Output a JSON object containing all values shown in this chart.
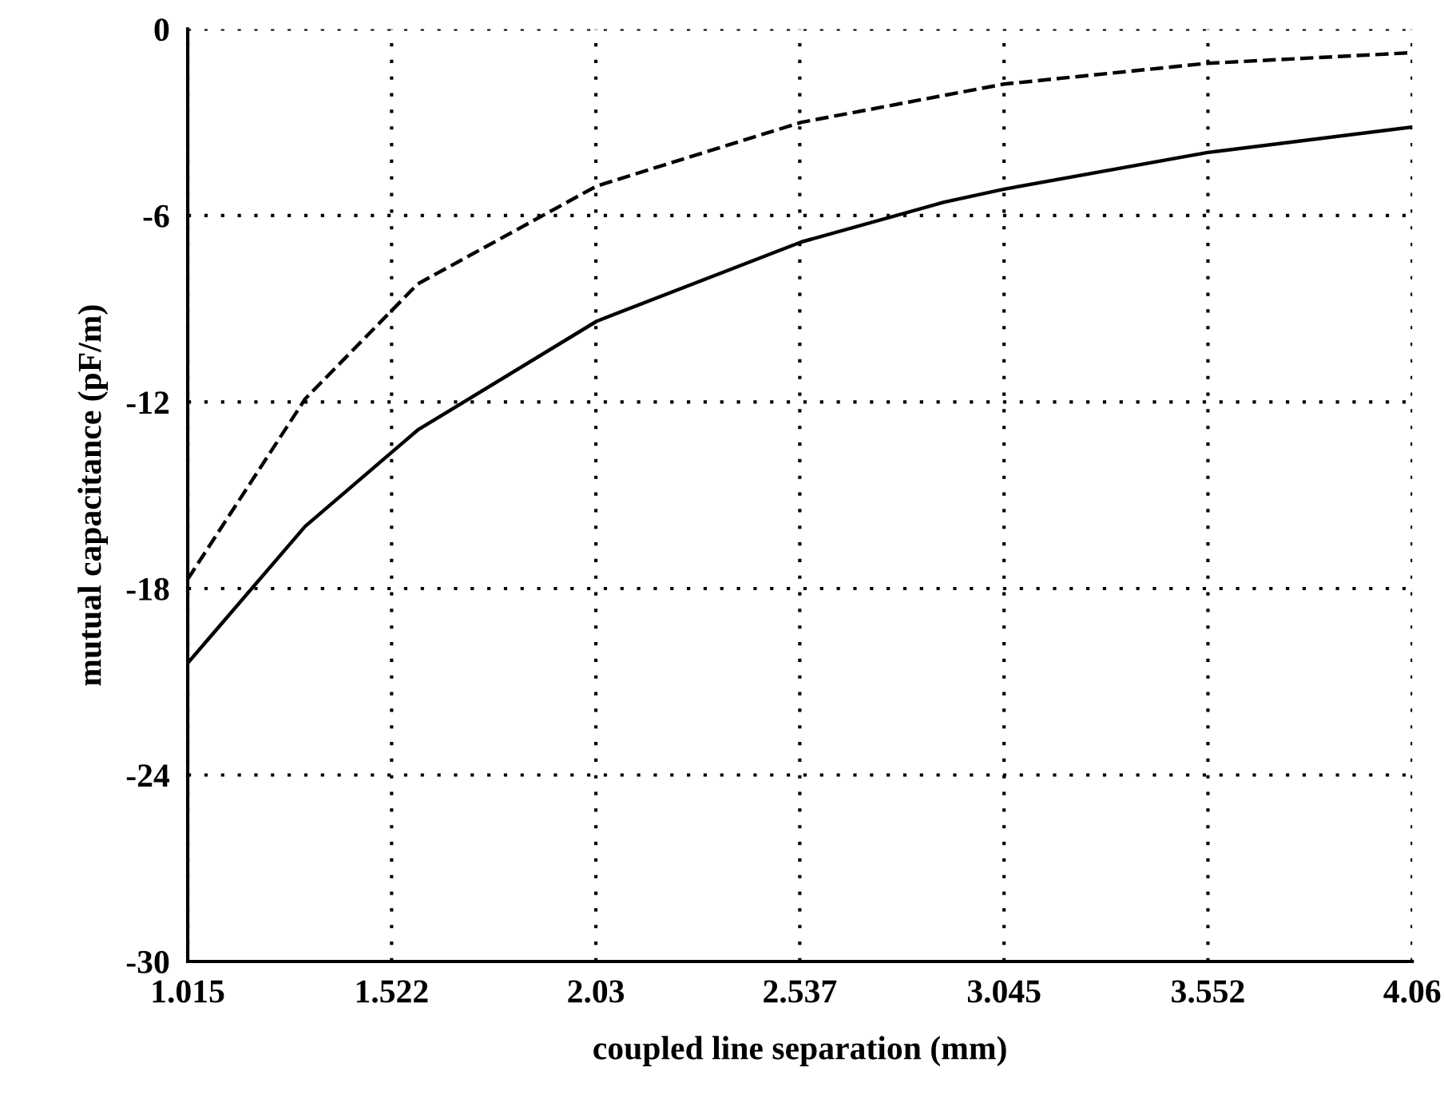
{
  "chart_data": {
    "type": "line",
    "xlabel": "coupled line separation (mm)",
    "ylabel": "mutual capacitance (pF/m)",
    "xlim": [
      1.015,
      4.06
    ],
    "xticks": [
      1.015,
      1.522,
      2.03,
      2.537,
      3.045,
      3.552,
      4.06
    ],
    "ylim": [
      -30,
      0
    ],
    "yticks": [
      -30,
      -24,
      -18,
      -12,
      -6,
      0
    ],
    "grid": true,
    "marker": "none",
    "series": [
      {
        "color": "#000000",
        "line_style": "dashed",
        "x": [
          1.015,
          1.307,
          1.587,
          2.032,
          2.292,
          2.541,
          3.045,
          3.552,
          4.06
        ],
        "values": [
          -17.7,
          -11.9,
          -8.2,
          -5.05,
          -4.0,
          -3.0,
          -1.77,
          -1.1,
          -0.76
        ]
      },
      {
        "color": "#000000",
        "line_style": "solid",
        "x": [
          1.015,
          1.307,
          1.587,
          2.032,
          2.541,
          2.896,
          3.045,
          3.552,
          4.06
        ],
        "values": [
          -20.4,
          -16.0,
          -12.9,
          -9.4,
          -6.85,
          -5.57,
          -5.15,
          -3.97,
          -3.15
        ]
      }
    ]
  }
}
